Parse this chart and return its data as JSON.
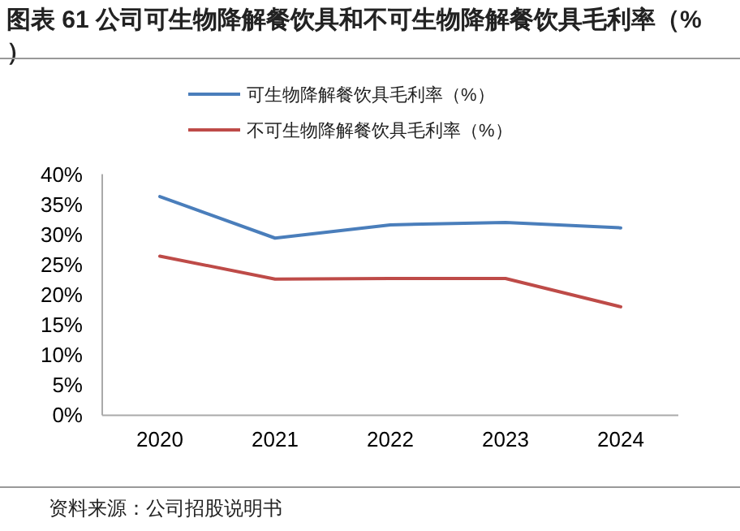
{
  "chart_data": {
    "type": "line",
    "title": "图表 61 公司可生物降解餐饮具和不可生物降解餐饮具毛利率（%）",
    "categories": [
      "2020",
      "2021",
      "2022",
      "2023",
      "2024"
    ],
    "series": [
      {
        "name": "可生物降解餐饮具毛利率（%）",
        "color": "#4a7ebb",
        "values": [
          36.3,
          29.4,
          31.6,
          32.0,
          31.1
        ]
      },
      {
        "name": "不可生物降解餐饮具毛利率（%）",
        "color": "#be4b48",
        "values": [
          26.4,
          22.6,
          22.7,
          22.7,
          18.0
        ]
      }
    ],
    "ylim": [
      0,
      40
    ],
    "yticks": [
      {
        "value": 0,
        "label": "0%"
      },
      {
        "value": 5,
        "label": "5%"
      },
      {
        "value": 10,
        "label": "10%"
      },
      {
        "value": 15,
        "label": "15%"
      },
      {
        "value": 20,
        "label": "20%"
      },
      {
        "value": 25,
        "label": "25%"
      },
      {
        "value": 30,
        "label": "30%"
      },
      {
        "value": 35,
        "label": "35%"
      },
      {
        "value": 40,
        "label": "40%"
      }
    ],
    "grid": false,
    "legend": "top",
    "marker": "none",
    "line_style": "solid",
    "annotations": [
      "资料来源：公司招股说明书"
    ]
  }
}
